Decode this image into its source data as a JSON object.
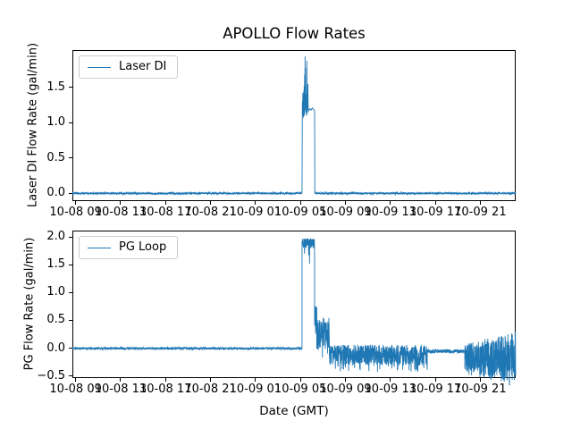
{
  "title": "APOLLO Flow Rates",
  "accent_color": "#1f77b4",
  "xaxis": {
    "label": "Date (GMT)",
    "tick_labels": [
      "10-08 09",
      "10-08 13",
      "10-08 17",
      "10-08 21",
      "10-09 01",
      "10-09 05",
      "10-09 09",
      "10-09 13",
      "10-09 17",
      "10-09 21"
    ],
    "tick_hours": [
      0,
      4,
      8,
      12,
      16,
      20,
      24,
      28,
      32,
      36
    ],
    "xlim_hours": [
      -0.29,
      39.15
    ],
    "time_reference": "hours after 10-08 09:00 GMT",
    "tick_interval_hours": 4
  },
  "chart_data": [
    {
      "type": "line",
      "subplot": "top",
      "ylabel": "Laser DI Flow Rate (gal/min)",
      "legend": "Laser DI",
      "legend_position": "upper left",
      "line_color": "#1f77b4",
      "ylim": [
        -0.11,
        2.03
      ],
      "yticks": [
        {
          "v": 0.0,
          "label": "0.0"
        },
        {
          "v": 0.5,
          "label": "0.5"
        },
        {
          "v": 1.0,
          "label": "1.0"
        },
        {
          "v": 1.5,
          "label": "1.5"
        }
      ],
      "peak_value": 1.94,
      "series_segments": [
        {
          "kind": "noise",
          "t0": -0.29,
          "t1": 20.14,
          "lo": -0.013,
          "hi": 0.013
        },
        {
          "kind": "path",
          "points": [
            [
              20.14,
              0.02
            ],
            [
              20.17,
              1.3
            ],
            [
              20.19,
              1.1
            ],
            [
              20.21,
              1.42
            ],
            [
              20.23,
              1.1
            ],
            [
              20.25,
              1.38
            ],
            [
              20.27,
              1.07
            ],
            [
              20.29,
              1.45
            ],
            [
              20.31,
              1.12
            ],
            [
              20.33,
              1.52
            ],
            [
              20.35,
              1.1
            ],
            [
              20.37,
              1.68
            ],
            [
              20.39,
              1.15
            ],
            [
              20.41,
              1.94
            ],
            [
              20.43,
              1.28
            ],
            [
              20.45,
              1.78
            ],
            [
              20.47,
              1.18
            ],
            [
              20.49,
              1.4
            ],
            [
              20.51,
              1.12
            ],
            [
              20.53,
              1.32
            ],
            [
              20.55,
              1.1
            ],
            [
              20.57,
              1.88
            ],
            [
              20.59,
              1.22
            ],
            [
              20.61,
              1.28
            ],
            [
              20.63,
              1.14
            ],
            [
              20.66,
              1.55
            ],
            [
              20.69,
              1.2
            ],
            [
              20.75,
              1.17
            ],
            [
              20.85,
              1.2
            ],
            [
              20.95,
              1.18
            ],
            [
              21.05,
              1.21
            ],
            [
              21.15,
              1.19
            ],
            [
              21.26,
              1.17
            ],
            [
              21.28,
              0.02
            ]
          ]
        },
        {
          "kind": "noise",
          "t0": 21.29,
          "t1": 39.15,
          "lo": -0.013,
          "hi": 0.013
        }
      ]
    },
    {
      "type": "line",
      "subplot": "bottom",
      "ylabel": "PG Flow Rate (gal/min)",
      "legend": "PG Loop",
      "legend_position": "upper left",
      "line_color": "#1f77b4",
      "ylim": [
        -0.54,
        2.12
      ],
      "yticks": [
        {
          "v": 2.0,
          "label": "2.0"
        },
        {
          "v": 1.5,
          "label": "1.5"
        },
        {
          "v": 1.0,
          "label": "1.0"
        },
        {
          "v": 0.5,
          "label": "0.5"
        },
        {
          "v": 0.0,
          "label": "0.0"
        },
        {
          "v": -0.5,
          "label": "−0.5"
        }
      ],
      "peak_value": 1.98,
      "series_segments": [
        {
          "kind": "noise",
          "t0": -0.29,
          "t1": 20.14,
          "lo": -0.025,
          "hi": 0.015
        },
        {
          "kind": "noise",
          "t0": 20.14,
          "t1": 21.26,
          "lo": 1.8,
          "hi": 1.98,
          "dip_chance": 0.05,
          "dip_extra": 0.3
        },
        {
          "kind": "noise",
          "t0": 21.26,
          "t1": 21.45,
          "lo": 0.25,
          "hi": 0.8
        },
        {
          "kind": "noise",
          "t0": 21.45,
          "t1": 22.57,
          "lo": -0.07,
          "hi": 0.55,
          "dip_chance": 0.05,
          "dip_extra": 0.1
        },
        {
          "kind": "noise",
          "t0": 22.57,
          "t1": 31.28,
          "lo": -0.31,
          "hi": 0.06,
          "dip_chance": 0.05,
          "dip_extra": 0.12
        },
        {
          "kind": "noise",
          "t0": 31.28,
          "t1": 34.62,
          "lo": -0.09,
          "hi": -0.02
        },
        {
          "kind": "noise",
          "t0": 34.62,
          "t1": 39.15,
          "lo": -0.42,
          "hi": 0.07,
          "lo1": -0.62,
          "hi1": 0.32,
          "dip_chance": 0.04,
          "dip_extra": 0.08
        }
      ]
    }
  ]
}
